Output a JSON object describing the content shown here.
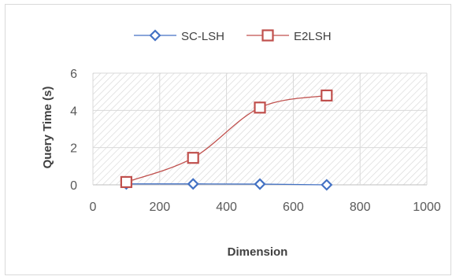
{
  "chart_data": {
    "type": "scatter",
    "title": "",
    "xlabel": "Dimension",
    "ylabel": "Query Time (s)",
    "xlim": [
      0,
      1000
    ],
    "ylim": [
      0,
      6
    ],
    "x_ticks": [
      "0",
      "200",
      "400",
      "600",
      "800",
      "1000"
    ],
    "y_ticks": [
      "0",
      "2",
      "4",
      "6"
    ],
    "grid": true,
    "plot_background": "diagonal-hatch",
    "legend_position": "top",
    "series": [
      {
        "name": "SC-LSH",
        "color": "#4472c4",
        "marker": "diamond",
        "line": "smooth",
        "x": [
          100,
          300,
          500,
          700
        ],
        "y": [
          0.05,
          0.05,
          0.04,
          0.0
        ]
      },
      {
        "name": "E2LSH",
        "color": "#c0504d",
        "marker": "square",
        "line": "smooth",
        "x": [
          100,
          300,
          500,
          700
        ],
        "y": [
          0.15,
          1.45,
          4.15,
          4.8
        ]
      }
    ]
  }
}
